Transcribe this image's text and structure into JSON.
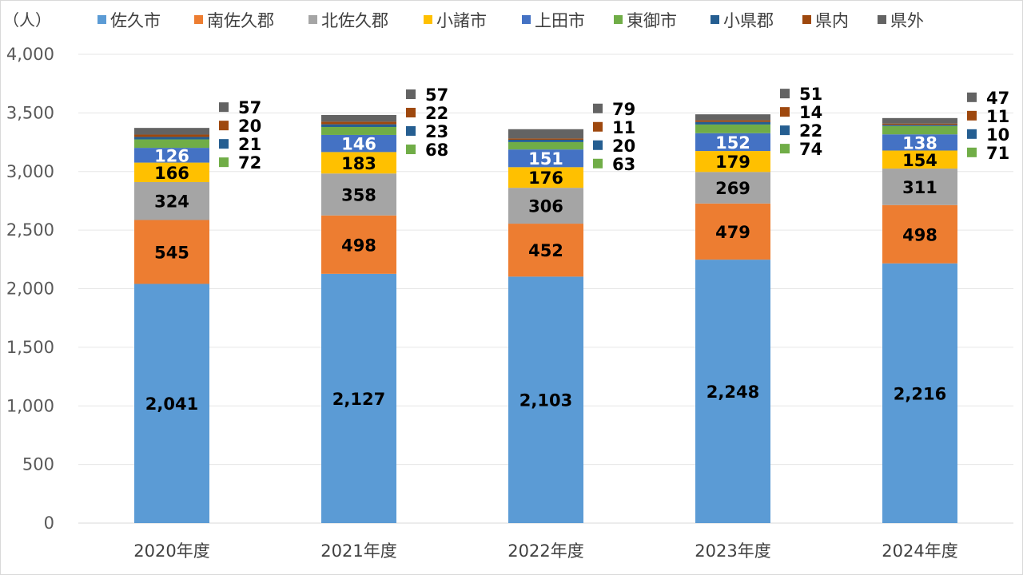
{
  "chart_data": {
    "type": "bar",
    "stacked": true,
    "unit_label": "（人）",
    "categories": [
      "2020年度",
      "2021年度",
      "2022年度",
      "2023年度",
      "2024年度"
    ],
    "ylim": [
      0,
      4000
    ],
    "yticks": [
      0,
      500,
      1000,
      1500,
      2000,
      2500,
      3000,
      3500,
      4000
    ],
    "ytick_labels": [
      "0",
      "500",
      "1,000",
      "1,500",
      "2,000",
      "2,500",
      "3,000",
      "3,500",
      "4,000"
    ],
    "grid": true,
    "legend_position": "top",
    "series": [
      {
        "name": "佐久市",
        "color": "#5b9bd5",
        "label_color": "#000000",
        "values": [
          2041,
          2127,
          2103,
          2248,
          2216
        ],
        "labels": [
          "2,041",
          "2,127",
          "2,103",
          "2,248",
          "2,216"
        ]
      },
      {
        "name": "南佐久郡",
        "color": "#ed7d31",
        "label_color": "#000000",
        "values": [
          545,
          498,
          452,
          479,
          498
        ],
        "labels": [
          "545",
          "498",
          "452",
          "479",
          "498"
        ]
      },
      {
        "name": "北佐久郡",
        "color": "#a5a5a5",
        "label_color": "#000000",
        "values": [
          324,
          358,
          306,
          269,
          311
        ],
        "labels": [
          "324",
          "358",
          "306",
          "269",
          "311"
        ]
      },
      {
        "name": "小諸市",
        "color": "#ffc000",
        "label_color": "#000000",
        "values": [
          166,
          183,
          176,
          179,
          154
        ],
        "labels": [
          "166",
          "183",
          "176",
          "179",
          "154"
        ]
      },
      {
        "name": "上田市",
        "color": "#4472c4",
        "label_color": "#ffffff",
        "values": [
          126,
          146,
          151,
          152,
          138
        ],
        "labels": [
          "126",
          "146",
          "151",
          "152",
          "138"
        ]
      },
      {
        "name": "東御市",
        "color": "#70ad47",
        "values": [
          72,
          68,
          63,
          74,
          71
        ],
        "labels": [
          "72",
          "68",
          "63",
          "74",
          "71"
        ]
      },
      {
        "name": "小県郡",
        "color": "#255e91",
        "values": [
          21,
          23,
          20,
          22,
          10
        ],
        "labels": [
          "21",
          "23",
          "20",
          "22",
          "10"
        ]
      },
      {
        "name": "県内",
        "color": "#9e480e",
        "values": [
          20,
          22,
          11,
          14,
          11
        ],
        "labels": [
          "20",
          "22",
          "11",
          "14",
          "11"
        ]
      },
      {
        "name": "県外",
        "color": "#636363",
        "values": [
          57,
          57,
          79,
          51,
          47
        ],
        "labels": [
          "57",
          "57",
          "79",
          "51",
          "47"
        ]
      }
    ]
  }
}
